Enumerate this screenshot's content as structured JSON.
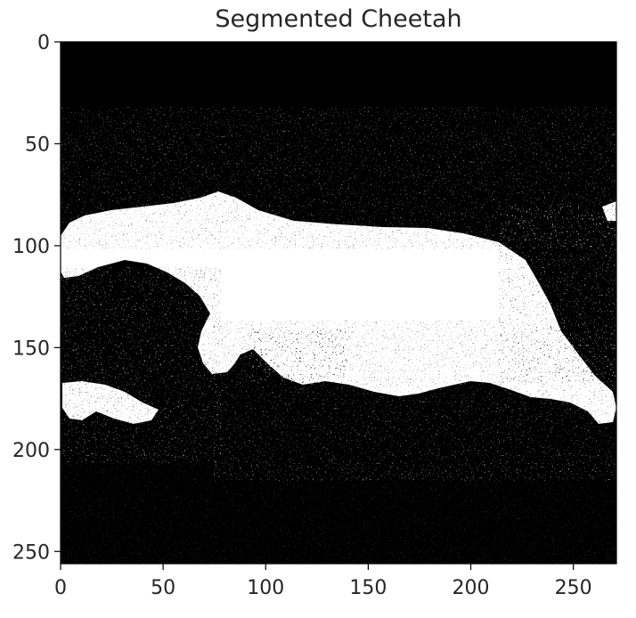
{
  "figure": {
    "title": "Segmented Cheetah",
    "colors": {
      "background": "#ffffff",
      "mask_on": "#ffffff",
      "mask_off": "#000000",
      "text": "#262626"
    },
    "image_extent": {
      "x": [
        0,
        271
      ],
      "y": [
        0,
        256
      ]
    },
    "x_ticks": [
      "0",
      "50",
      "100",
      "150",
      "200",
      "250"
    ],
    "y_ticks": [
      "0",
      "50",
      "100",
      "150",
      "200",
      "250"
    ],
    "regions": [
      {
        "name": "cheetah-body",
        "value": "white"
      },
      {
        "name": "background-top",
        "value": "black"
      },
      {
        "name": "background-bottom",
        "value": "black"
      }
    ]
  }
}
